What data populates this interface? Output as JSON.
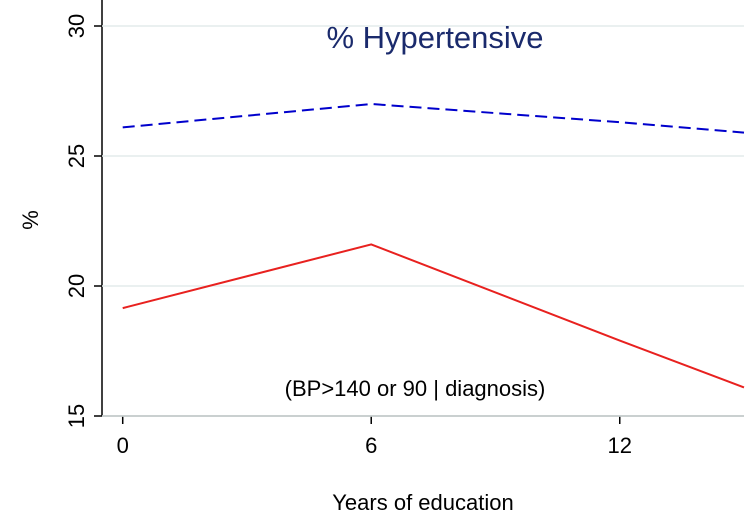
{
  "chart_data": {
    "type": "line",
    "title": "% Hypertensive",
    "annotation": "(BP>140 or 90 | diagnosis)",
    "x_label": "Years of education",
    "y_label": "%",
    "x": [
      0,
      6,
      12,
      15
    ],
    "series": [
      {
        "color": "#0000cc",
        "dash": true,
        "values": [
          26.1,
          27.0,
          26.3,
          25.9
        ]
      },
      {
        "color": "#e8211f",
        "dash": false,
        "values": [
          19.15,
          21.6,
          17.9,
          16.1
        ]
      }
    ],
    "xlim": [
      -0.5,
      15
    ],
    "xticks": [
      0,
      6,
      12
    ],
    "ylim": [
      15,
      31
    ],
    "yticks": [
      15,
      20,
      25,
      30
    ],
    "grid": true
  }
}
